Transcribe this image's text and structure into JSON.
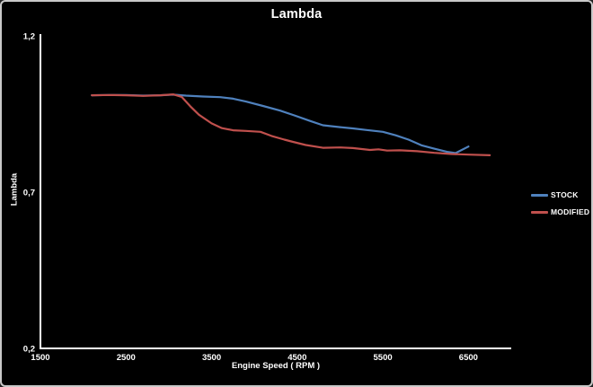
{
  "chart_data": {
    "type": "line",
    "title": "Lambda",
    "xlabel": "Engine Speed ( RPM )",
    "ylabel": "Lambda",
    "xlim": [
      1500,
      7000
    ],
    "ylim": [
      0.2,
      1.2
    ],
    "grid": false,
    "background_color": "#000000",
    "axis_color": "#ffffff",
    "text_color": "#ffffff",
    "legend_position": "right",
    "x_ticks": [
      {
        "value": 1500,
        "label": "1500"
      },
      {
        "value": 2500,
        "label": "2500"
      },
      {
        "value": 3500,
        "label": "3500"
      },
      {
        "value": 4500,
        "label": "4500"
      },
      {
        "value": 5500,
        "label": "5500"
      },
      {
        "value": 6500,
        "label": "6500"
      }
    ],
    "y_ticks": [
      {
        "value": 1.2,
        "label": "1,2"
      },
      {
        "value": 0.7,
        "label": "0,7"
      },
      {
        "value": 0.2,
        "label": "0,2"
      }
    ],
    "series": [
      {
        "name": "STOCK",
        "color": "#4f81bd",
        "points": [
          [
            2100,
            1.01
          ],
          [
            2300,
            1.011
          ],
          [
            2500,
            1.011
          ],
          [
            2700,
            1.009
          ],
          [
            2900,
            1.01
          ],
          [
            3050,
            1.012
          ],
          [
            3200,
            1.009
          ],
          [
            3400,
            1.006
          ],
          [
            3600,
            1.004
          ],
          [
            3750,
            0.999
          ],
          [
            3900,
            0.99
          ],
          [
            4100,
            0.976
          ],
          [
            4300,
            0.961
          ],
          [
            4450,
            0.947
          ],
          [
            4650,
            0.928
          ],
          [
            4800,
            0.914
          ],
          [
            5000,
            0.908
          ],
          [
            5150,
            0.904
          ],
          [
            5300,
            0.899
          ],
          [
            5500,
            0.893
          ],
          [
            5650,
            0.882
          ],
          [
            5800,
            0.868
          ],
          [
            5950,
            0.85
          ],
          [
            6100,
            0.839
          ],
          [
            6250,
            0.829
          ],
          [
            6350,
            0.825
          ],
          [
            6500,
            0.846
          ]
        ]
      },
      {
        "name": "MODIFIED",
        "color": "#c0504d",
        "points": [
          [
            2100,
            1.01
          ],
          [
            2300,
            1.011
          ],
          [
            2500,
            1.01
          ],
          [
            2700,
            1.008
          ],
          [
            2900,
            1.01
          ],
          [
            3050,
            1.013
          ],
          [
            3150,
            1.005
          ],
          [
            3250,
            0.975
          ],
          [
            3350,
            0.948
          ],
          [
            3500,
            0.92
          ],
          [
            3620,
            0.905
          ],
          [
            3750,
            0.898
          ],
          [
            3900,
            0.896
          ],
          [
            4070,
            0.893
          ],
          [
            4200,
            0.88
          ],
          [
            4350,
            0.868
          ],
          [
            4450,
            0.861
          ],
          [
            4600,
            0.851
          ],
          [
            4800,
            0.842
          ],
          [
            5000,
            0.843
          ],
          [
            5150,
            0.841
          ],
          [
            5350,
            0.835
          ],
          [
            5450,
            0.837
          ],
          [
            5550,
            0.833
          ],
          [
            5700,
            0.834
          ],
          [
            5900,
            0.831
          ],
          [
            6100,
            0.826
          ],
          [
            6300,
            0.822
          ],
          [
            6500,
            0.82
          ],
          [
            6750,
            0.818
          ]
        ]
      }
    ]
  }
}
